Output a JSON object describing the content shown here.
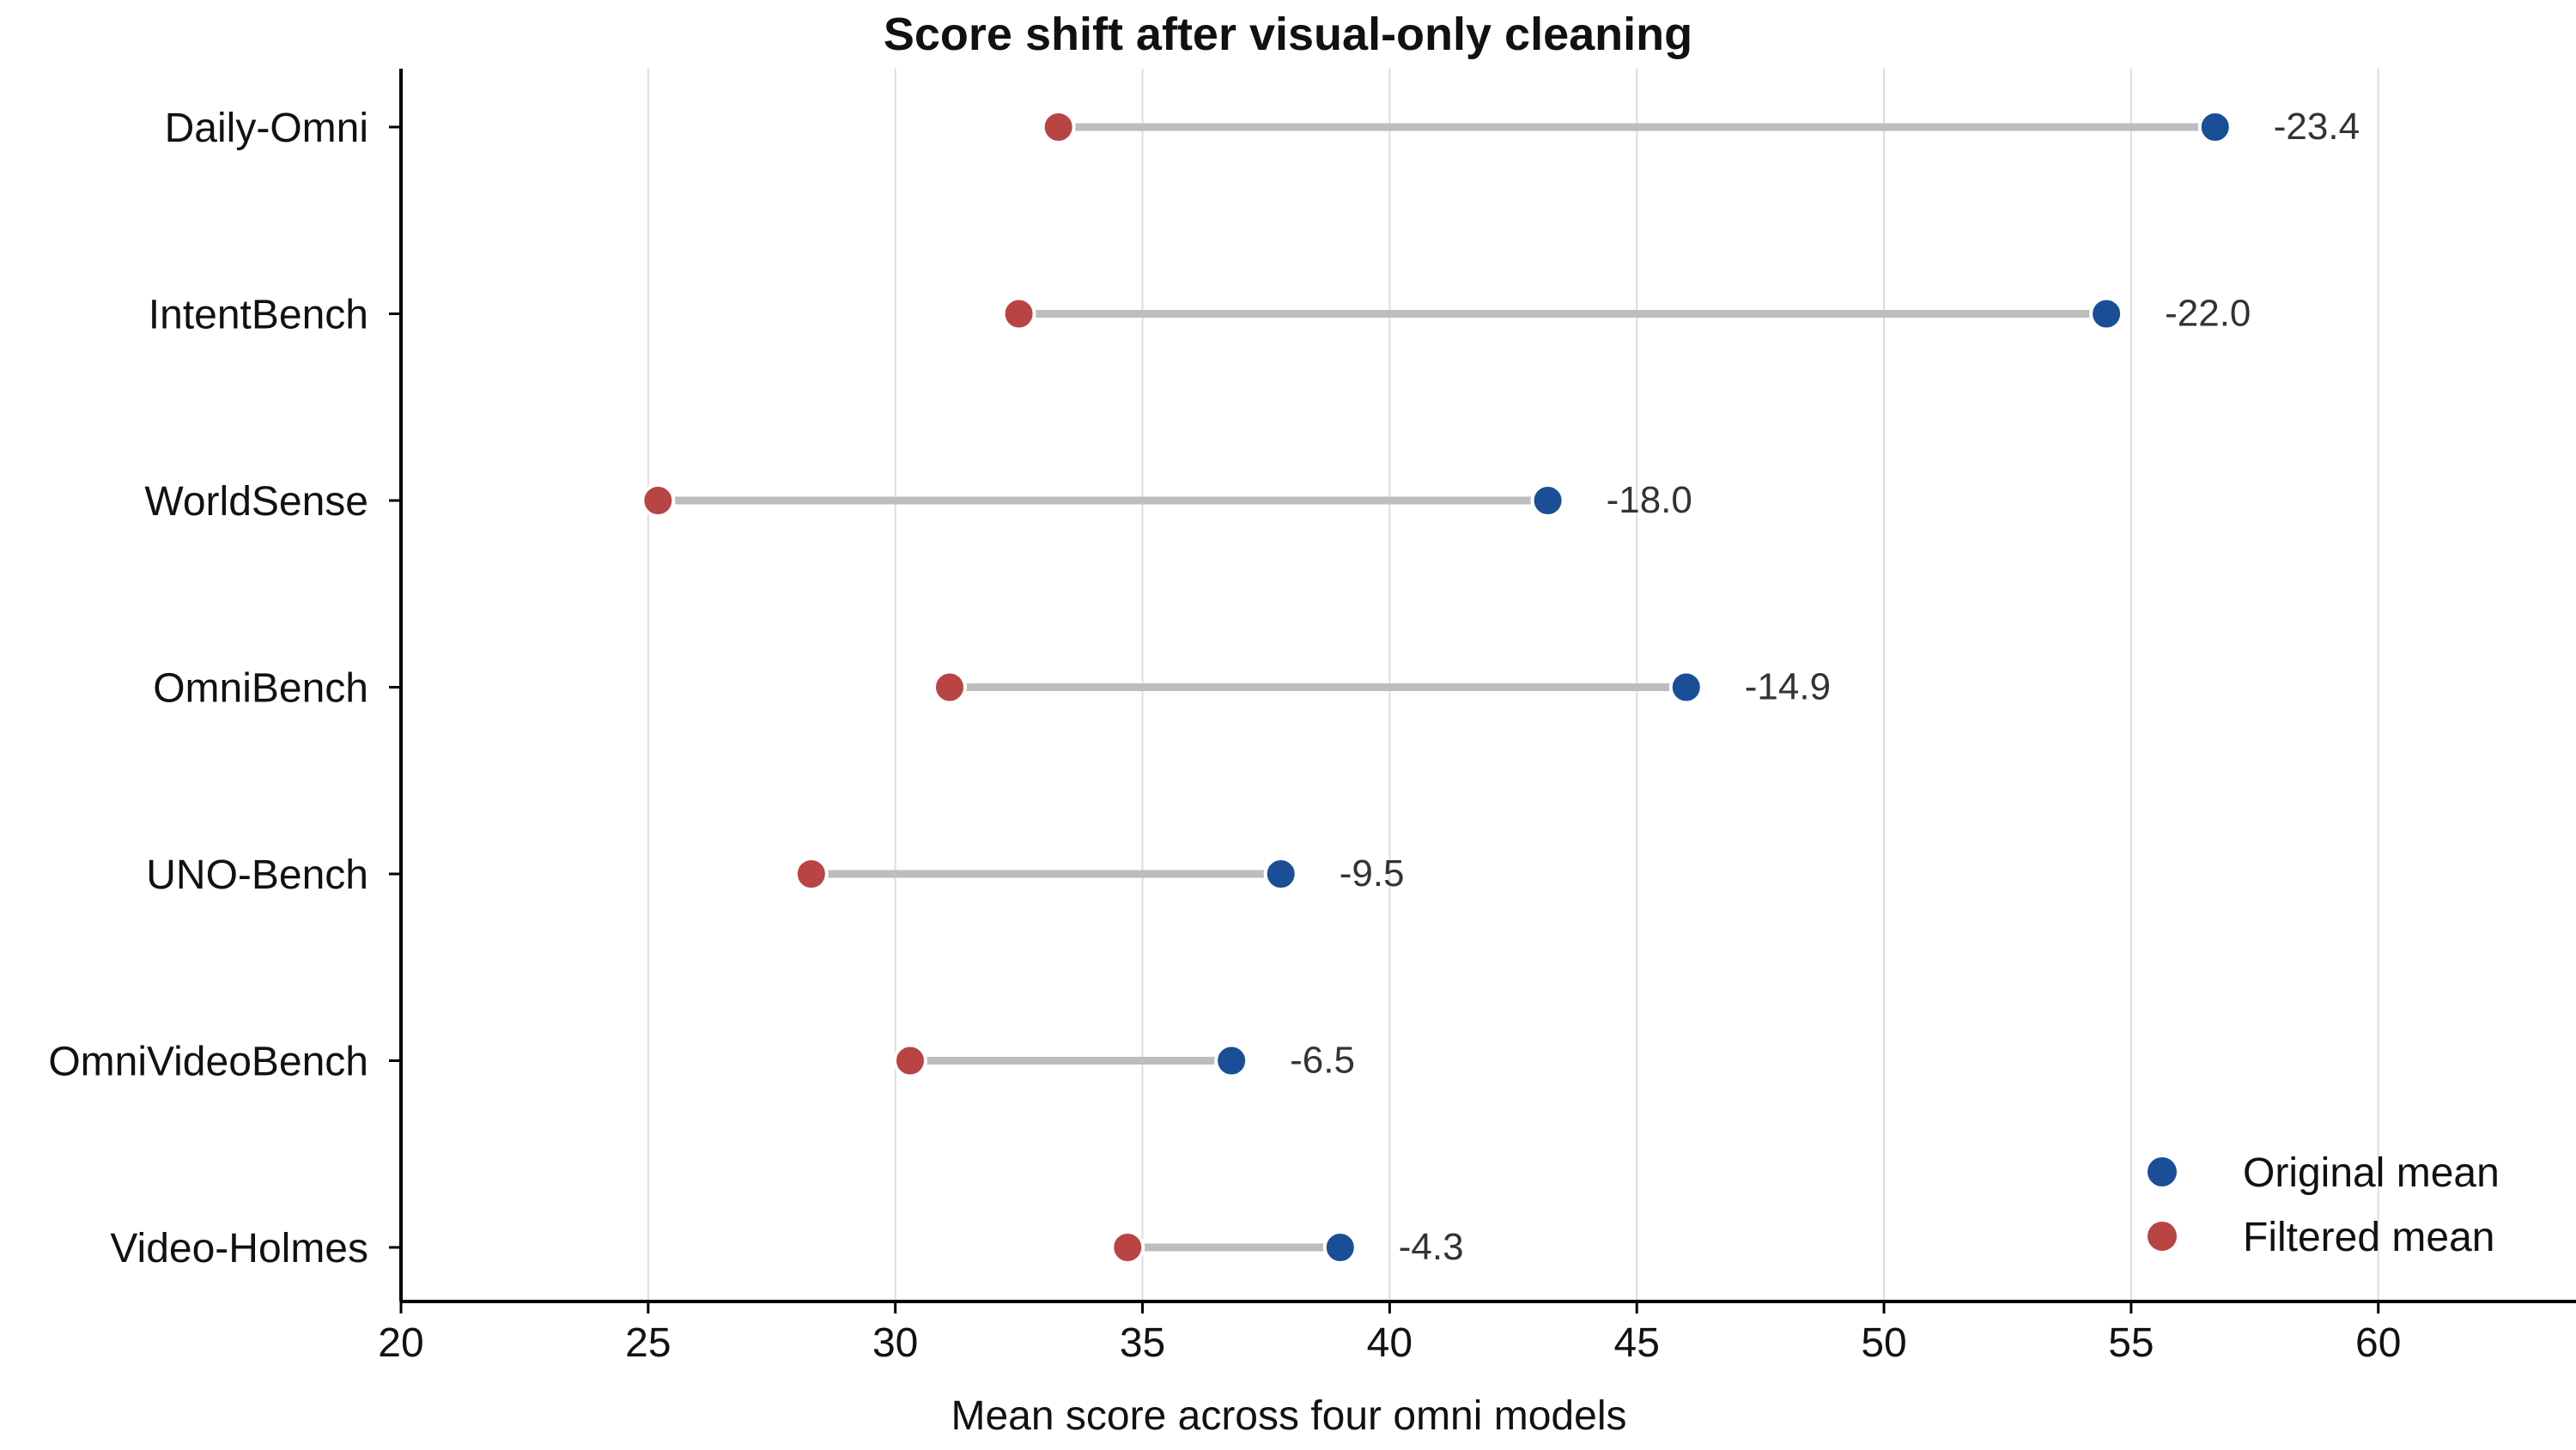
{
  "chart_data": {
    "type": "dumbbell",
    "title": "Score shift after visual-only cleaning",
    "xlabel": "Mean score across four omni models",
    "ylabel": "",
    "xlim": [
      20,
      64
    ],
    "xticks": [
      20,
      25,
      30,
      35,
      40,
      45,
      50,
      55,
      60
    ],
    "xtick_labels": [
      "20",
      "25",
      "30",
      "35",
      "40",
      "45",
      "50",
      "55",
      "60"
    ],
    "grid": "vertical",
    "legend_position": "bottom-right",
    "colors": {
      "original": "#1a4e96",
      "filtered": "#b84444",
      "connector": "#bdbdbd",
      "grid": "#dddddd"
    },
    "series": [
      {
        "name": "Original mean",
        "key": "original"
      },
      {
        "name": "Filtered mean",
        "key": "filtered"
      }
    ],
    "categories": [
      "Daily-Omni",
      "IntentBench",
      "WorldSense",
      "OmniBench",
      "UNO-Bench",
      "OmniVideoBench",
      "Video-Holmes"
    ],
    "original": [
      56.7,
      54.5,
      43.2,
      46.0,
      37.8,
      36.8,
      39.0
    ],
    "filtered": [
      33.3,
      32.5,
      25.2,
      31.1,
      28.3,
      30.3,
      34.7
    ],
    "diff_labels": [
      "-23.4",
      "-22.0",
      "-18.0",
      "-14.9",
      "-9.5",
      "-6.5",
      "-4.3"
    ]
  }
}
